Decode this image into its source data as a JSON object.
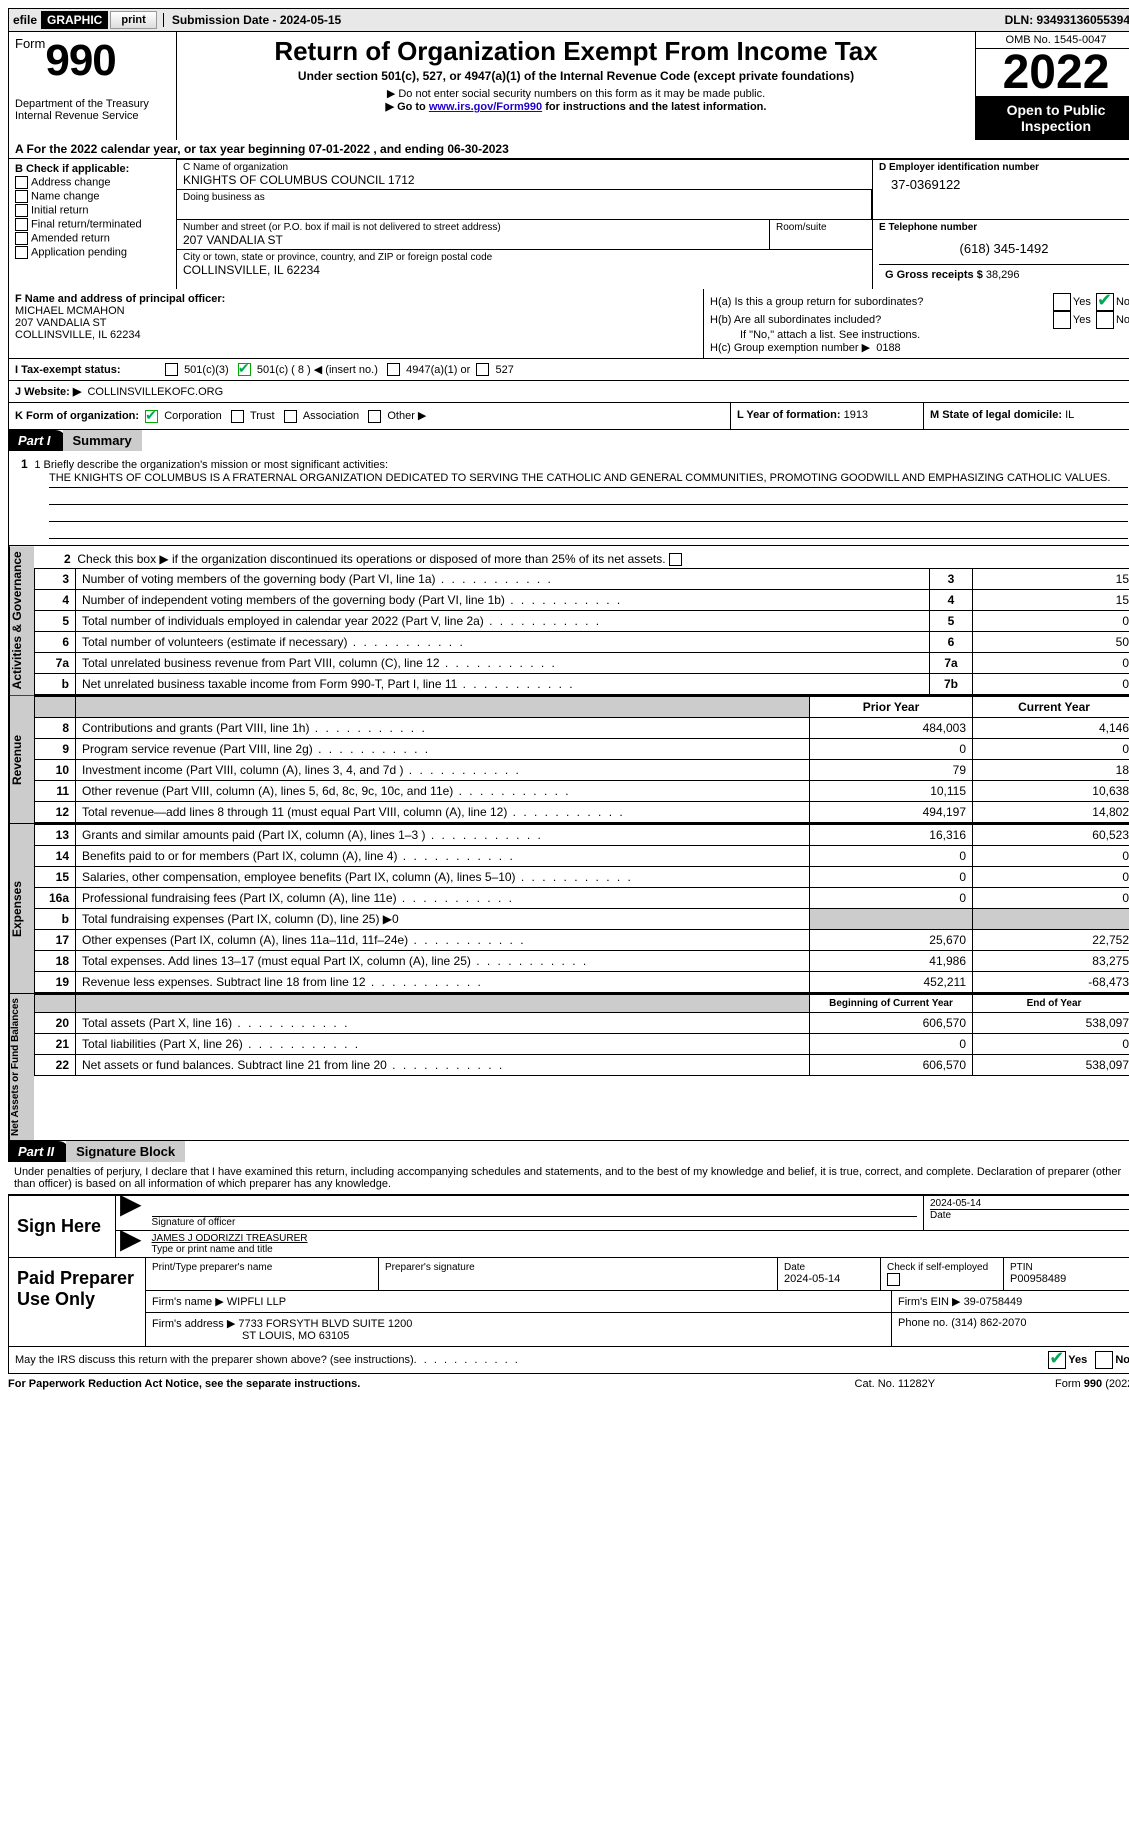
{
  "top": {
    "efile": "efile",
    "graphic": "GRAPHIC",
    "print_btn": "print",
    "submission_label": "Submission Date - 2024-05-15",
    "dln": "DLN: 93493136055394"
  },
  "header": {
    "form_prefix": "Form",
    "form_number": "990",
    "dept": "Department of the Treasury",
    "irs": "Internal Revenue Service",
    "title": "Return of Organization Exempt From Income Tax",
    "subtitle": "Under section 501(c), 527, or 4947(a)(1) of the Internal Revenue Code (except private foundations)",
    "note1": "▶ Do not enter social security numbers on this form as it may be made public.",
    "note2_pre": "▶ Go to ",
    "note2_link": "www.irs.gov/Form990",
    "note2_post": " for instructions and the latest information.",
    "omb": "OMB No. 1545-0047",
    "year": "2022",
    "open": "Open to Public Inspection"
  },
  "rowA": "A  For the 2022 calendar year, or tax year beginning 07-01-2022    , and ending 06-30-2023",
  "B": {
    "header": "B Check if applicable:",
    "items": [
      "Address change",
      "Name change",
      "Initial return",
      "Final return/terminated",
      "Amended return",
      "Application pending"
    ]
  },
  "C": {
    "name_label": "C Name of organization",
    "name": "KNIGHTS OF COLUMBUS COUNCIL 1712",
    "dba_label": "Doing business as",
    "street_label": "Number and street (or P.O. box if mail is not delivered to street address)",
    "street": "207 VANDALIA ST",
    "room_label": "Room/suite",
    "city_label": "City or town, state or province, country, and ZIP or foreign postal code",
    "city": "COLLINSVILLE, IL  62234"
  },
  "D": {
    "label": "D Employer identification number",
    "value": "37-0369122"
  },
  "E": {
    "label": "E Telephone number",
    "value": "(618) 345-1492"
  },
  "G": {
    "label": "G Gross receipts $",
    "value": "38,296"
  },
  "F": {
    "label": "F  Name and address of principal officer:",
    "name": "MICHAEL MCMAHON",
    "street": "207 VANDALIA ST",
    "city": "COLLINSVILLE, IL  62234"
  },
  "H": {
    "a": "H(a)  Is this a group return for subordinates?",
    "b": "H(b)  Are all subordinates included?",
    "b_note": "If \"No,\" attach a list. See instructions.",
    "c": "H(c)  Group exemption number ▶",
    "c_value": "0188",
    "yes": "Yes",
    "no": "No"
  },
  "I": {
    "label": "I   Tax-exempt status:",
    "opts": [
      "501(c)(3)",
      "501(c) ( 8 ) ◀ (insert no.)",
      "4947(a)(1) or",
      "527"
    ]
  },
  "J": {
    "label": "J   Website: ▶",
    "value": "COLLINSVILLEKOFC.ORG"
  },
  "K": {
    "label": "K Form of organization:",
    "opts": [
      "Corporation",
      "Trust",
      "Association",
      "Other ▶"
    ]
  },
  "L": {
    "label": "L Year of formation:",
    "value": "1913"
  },
  "M": {
    "label": "M State of legal domicile:",
    "value": "IL"
  },
  "part1": {
    "num": "Part I",
    "title": "Summary"
  },
  "mission": {
    "label": "1   Briefly describe the organization's mission or most significant activities:",
    "text": "THE KNIGHTS OF COLUMBUS IS A FRATERNAL ORGANIZATION DEDICATED TO SERVING THE CATHOLIC AND GENERAL COMMUNITIES, PROMOTING GOODWILL AND EMPHASIZING CATHOLIC VALUES."
  },
  "gov": {
    "line2": "Check this box ▶      if the organization discontinued its operations or disposed of more than 25% of its net assets.",
    "rows": [
      {
        "n": "3",
        "t": "Number of voting members of the governing body (Part VI, line 1a)",
        "box": "3",
        "v": "15"
      },
      {
        "n": "4",
        "t": "Number of independent voting members of the governing body (Part VI, line 1b)",
        "box": "4",
        "v": "15"
      },
      {
        "n": "5",
        "t": "Total number of individuals employed in calendar year 2022 (Part V, line 2a)",
        "box": "5",
        "v": "0"
      },
      {
        "n": "6",
        "t": "Total number of volunteers (estimate if necessary)",
        "box": "6",
        "v": "50"
      },
      {
        "n": "7a",
        "t": "Total unrelated business revenue from Part VIII, column (C), line 12",
        "box": "7a",
        "v": "0"
      },
      {
        "n": "b",
        "t": "Net unrelated business taxable income from Form 990-T, Part I, line 11",
        "box": "7b",
        "v": "0"
      }
    ]
  },
  "colheads": {
    "prior": "Prior Year",
    "current": "Current Year"
  },
  "revenue": [
    {
      "n": "8",
      "t": "Contributions and grants (Part VIII, line 1h)",
      "p": "484,003",
      "c": "4,146"
    },
    {
      "n": "9",
      "t": "Program service revenue (Part VIII, line 2g)",
      "p": "0",
      "c": "0"
    },
    {
      "n": "10",
      "t": "Investment income (Part VIII, column (A), lines 3, 4, and 7d )",
      "p": "79",
      "c": "18"
    },
    {
      "n": "11",
      "t": "Other revenue (Part VIII, column (A), lines 5, 6d, 8c, 9c, 10c, and 11e)",
      "p": "10,115",
      "c": "10,638"
    },
    {
      "n": "12",
      "t": "Total revenue—add lines 8 through 11 (must equal Part VIII, column (A), line 12)",
      "p": "494,197",
      "c": "14,802"
    }
  ],
  "expenses": [
    {
      "n": "13",
      "t": "Grants and similar amounts paid (Part IX, column (A), lines 1–3 )",
      "p": "16,316",
      "c": "60,523"
    },
    {
      "n": "14",
      "t": "Benefits paid to or for members (Part IX, column (A), line 4)",
      "p": "0",
      "c": "0"
    },
    {
      "n": "15",
      "t": "Salaries, other compensation, employee benefits (Part IX, column (A), lines 5–10)",
      "p": "0",
      "c": "0"
    },
    {
      "n": "16a",
      "t": "Professional fundraising fees (Part IX, column (A), line 11e)",
      "p": "0",
      "c": "0"
    },
    {
      "n": "b",
      "t": "Total fundraising expenses (Part IX, column (D), line 25) ▶0",
      "p": "",
      "c": "",
      "shade": true
    },
    {
      "n": "17",
      "t": "Other expenses (Part IX, column (A), lines 11a–11d, 11f–24e)",
      "p": "25,670",
      "c": "22,752"
    },
    {
      "n": "18",
      "t": "Total expenses. Add lines 13–17 (must equal Part IX, column (A), line 25)",
      "p": "41,986",
      "c": "83,275"
    },
    {
      "n": "19",
      "t": "Revenue less expenses. Subtract line 18 from line 12",
      "p": "452,211",
      "c": "-68,473"
    }
  ],
  "netheads": {
    "begin": "Beginning of Current Year",
    "end": "End of Year"
  },
  "netassets": [
    {
      "n": "20",
      "t": "Total assets (Part X, line 16)",
      "p": "606,570",
      "c": "538,097"
    },
    {
      "n": "21",
      "t": "Total liabilities (Part X, line 26)",
      "p": "0",
      "c": "0"
    },
    {
      "n": "22",
      "t": "Net assets or fund balances. Subtract line 21 from line 20",
      "p": "606,570",
      "c": "538,097"
    }
  ],
  "tabs": {
    "gov": "Activities & Governance",
    "rev": "Revenue",
    "exp": "Expenses",
    "net": "Net Assets or Fund Balances"
  },
  "part2": {
    "num": "Part II",
    "title": "Signature Block"
  },
  "penalty": "Under penalties of perjury, I declare that I have examined this return, including accompanying schedules and statements, and to the best of my knowledge and belief, it is true, correct, and complete. Declaration of preparer (other than officer) is based on all information of which preparer has any knowledge.",
  "sign": {
    "left": "Sign Here",
    "sig_label": "Signature of officer",
    "date": "2024-05-14",
    "date_label": "Date",
    "name": "JAMES J ODORIZZI TREASURER",
    "name_label": "Type or print name and title"
  },
  "prep": {
    "left": "Paid Preparer Use Only",
    "name_label": "Print/Type preparer's name",
    "sig_label": "Preparer's signature",
    "date_label": "Date",
    "date": "2024-05-14",
    "self_label": "Check        if self-employed",
    "ptin_label": "PTIN",
    "ptin": "P00958489",
    "firm_label": "Firm's name     ▶",
    "firm": "WIPFLI LLP",
    "ein_label": "Firm's EIN ▶",
    "ein": "39-0758449",
    "addr_label": "Firm's address ▶",
    "addr1": "7733 FORSYTH BLVD SUITE 1200",
    "addr2": "ST LOUIS, MO  63105",
    "phone_label": "Phone no.",
    "phone": "(314) 862-2070"
  },
  "discuss": "May the IRS discuss this return with the preparer shown above? (see instructions)",
  "footer": {
    "left": "For Paperwork Reduction Act Notice, see the separate instructions.",
    "mid": "Cat. No. 11282Y",
    "right": "Form 990 (2022)"
  }
}
